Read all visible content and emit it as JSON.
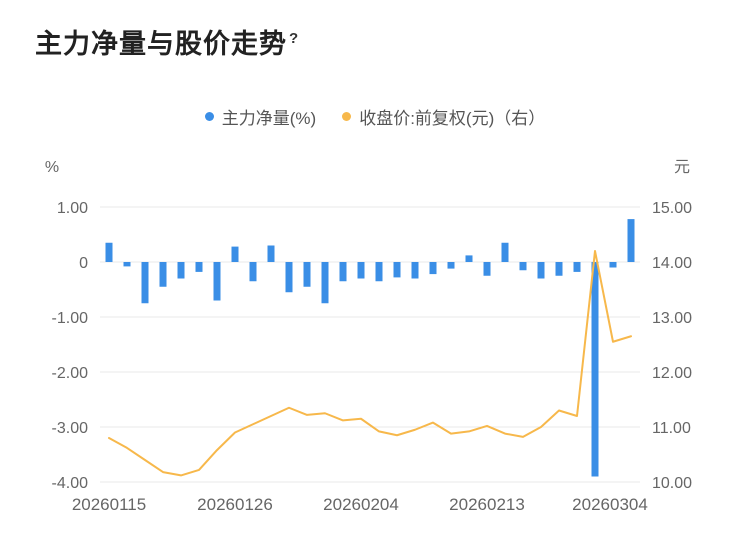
{
  "page": {
    "title": "主力净量与股价走势",
    "help_glyph": "?"
  },
  "legend": [
    {
      "label": "主力净量(%)",
      "color": "#3a8ee6"
    },
    {
      "label": "收盘价:前复权(元)（右）",
      "color": "#f7b84b"
    }
  ],
  "axes": {
    "left_unit": "%",
    "right_unit": "元",
    "left_ticks": [
      "1.00",
      "0",
      "-1.00",
      "-2.00",
      "-3.00",
      "-4.00"
    ],
    "right_ticks": [
      "15.00",
      "14.00",
      "13.00",
      "12.00",
      "11.00",
      "10.00"
    ],
    "x_labels": [
      "20260115",
      "20260126",
      "20260204",
      "20260213",
      "20260304"
    ]
  },
  "chart_data": {
    "type": "bar",
    "title": "主力净量与股价走势",
    "x": [
      "20260115",
      "20260116",
      "20260119",
      "20260120",
      "20260121",
      "20260122",
      "20260123",
      "20260126",
      "20260127",
      "20260128",
      "20260129",
      "20260130",
      "20260202",
      "20260203",
      "20260204",
      "20260205",
      "20260206",
      "20260209",
      "20260210",
      "20260211",
      "20260212",
      "20260213",
      "20260216",
      "20260224",
      "20260225",
      "20260226",
      "20260227",
      "20260302",
      "20260303",
      "20260304"
    ],
    "x_label_indices": [
      0,
      7,
      14,
      21,
      29
    ],
    "series": [
      {
        "name": "主力净量(%)",
        "type": "bar",
        "axis": "left",
        "color": "#3a8ee6",
        "values": [
          0.35,
          -0.08,
          -0.75,
          -0.45,
          -0.3,
          -0.18,
          -0.7,
          0.28,
          -0.35,
          0.3,
          -0.55,
          -0.45,
          -0.75,
          -0.35,
          -0.3,
          -0.35,
          -0.28,
          -0.3,
          -0.22,
          -0.12,
          0.12,
          -0.25,
          0.35,
          -0.15,
          -0.3,
          -0.25,
          -0.18,
          -3.9,
          -0.1,
          0.78
        ]
      },
      {
        "name": "收盘价:前复权(元)",
        "type": "line",
        "axis": "right",
        "color": "#f7b84b",
        "values": [
          10.8,
          10.62,
          10.4,
          10.18,
          10.12,
          10.22,
          10.58,
          10.9,
          11.05,
          11.2,
          11.35,
          11.22,
          11.25,
          11.12,
          11.15,
          10.92,
          10.85,
          10.95,
          11.08,
          10.88,
          10.92,
          11.02,
          10.88,
          10.82,
          11.0,
          11.3,
          11.2,
          14.2,
          12.55,
          12.65
        ]
      }
    ],
    "left_ylim": [
      -4,
      1
    ],
    "right_ylim": [
      10,
      15
    ],
    "grid": true,
    "legend_position": "top"
  },
  "colors": {
    "grid": "#e9e9e9",
    "tick_text": "#666666",
    "title_text": "#222222"
  }
}
